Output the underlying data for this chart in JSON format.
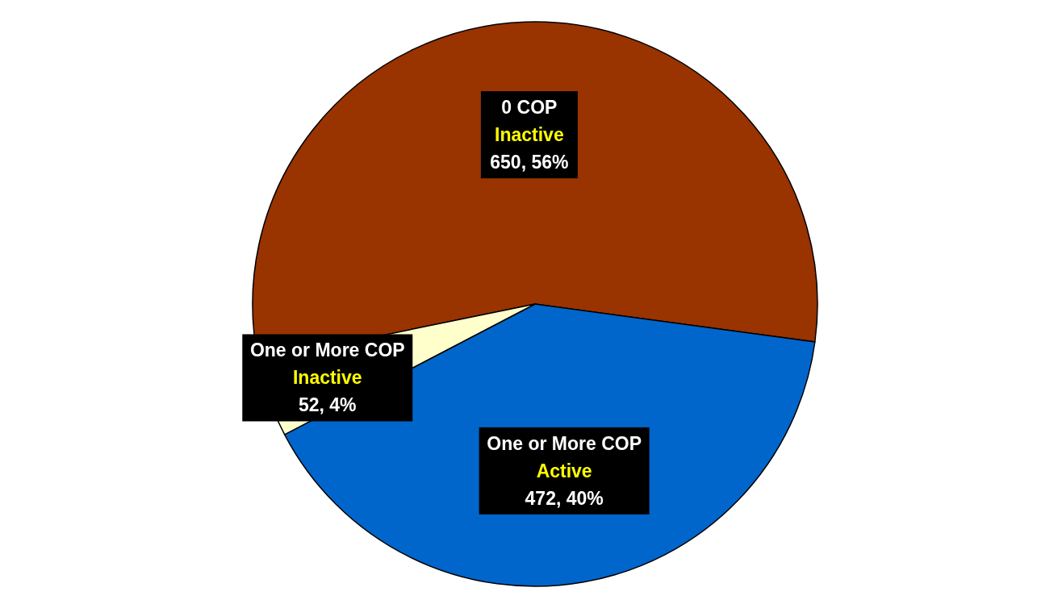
{
  "chart_data": {
    "type": "pie",
    "categories": [
      "0 COP\nInactive",
      "One or More COP\nActive",
      "One or More COP\nInactive"
    ],
    "values": [
      650,
      472,
      52
    ],
    "colors": [
      "#993300",
      "#0066cc",
      "#ffffcc"
    ],
    "value_labels": [
      "650, 56%",
      "472, 40%",
      "52, 4%"
    ],
    "legend": false
  }
}
